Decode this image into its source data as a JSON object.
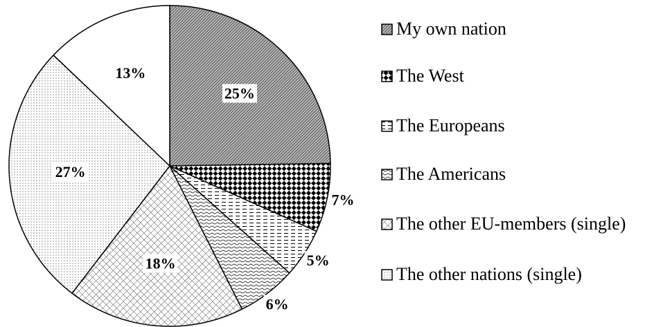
{
  "chart_data": {
    "type": "pie",
    "categories": [
      "My own nation",
      "The West",
      "The Europeans",
      "The Americans",
      "The other EU-members (single)",
      "The other nations (single)",
      null
    ],
    "values": [
      25,
      7,
      5,
      6,
      18,
      27,
      13
    ],
    "value_labels": [
      "25%",
      "7%",
      "5%",
      "6%",
      "18%",
      "27%",
      "13%"
    ],
    "patterns": [
      "diagonal",
      "checker",
      "dashes",
      "waves",
      "crosshatch",
      "dots",
      "none"
    ],
    "legend": "right"
  }
}
